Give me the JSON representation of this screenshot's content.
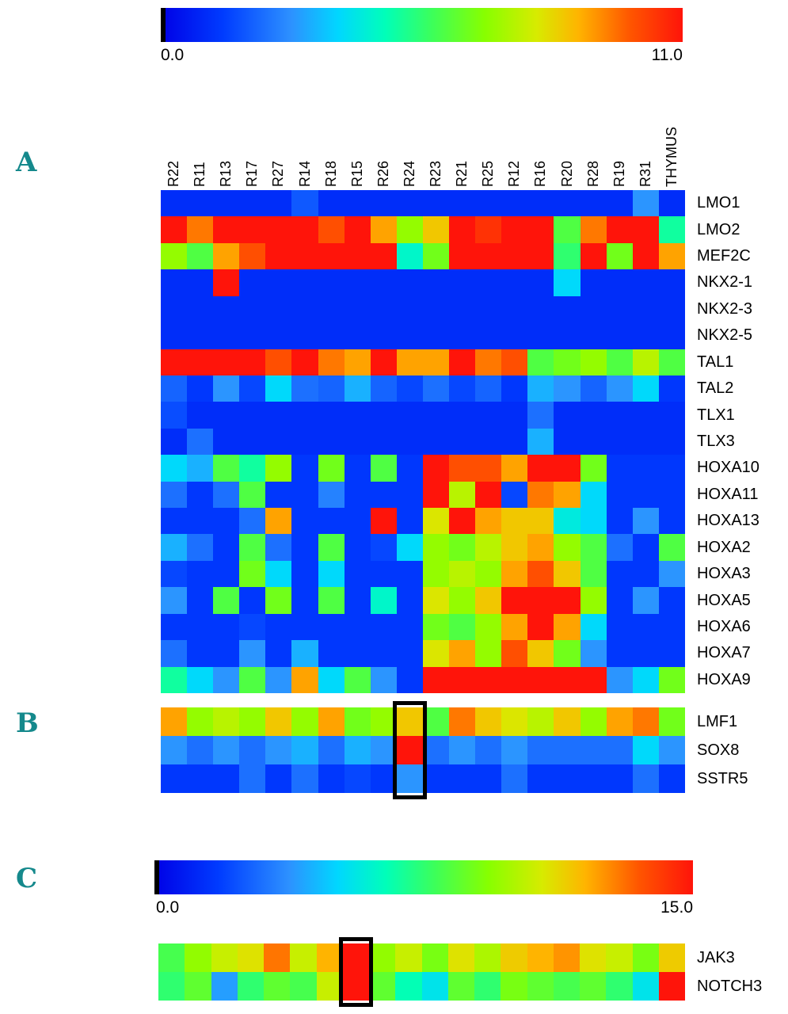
{
  "figure": {
    "panel_a_label": "A",
    "panel_b_label": "B",
    "panel_c_label": "C",
    "accent_color": "#15898c",
    "highlight_box_color": "#000000"
  },
  "columns": [
    "R22",
    "R11",
    "R13",
    "R17",
    "R27",
    "R14",
    "R18",
    "R15",
    "R26",
    "R24",
    "R23",
    "R21",
    "R25",
    "R12",
    "R16",
    "R20",
    "R28",
    "R19",
    "R31",
    "THYMUS"
  ],
  "chart_data": [
    {
      "type": "heatmap",
      "panel": "A",
      "colormap": "rainbow (blue=low, red=high)",
      "colorbar": {
        "min": 0.0,
        "max": 11.0,
        "min_label": "0.0",
        "max_label": "11.0"
      },
      "scale": {
        "min": 0,
        "max": 11
      },
      "columns": [
        "R22",
        "R11",
        "R13",
        "R17",
        "R27",
        "R14",
        "R18",
        "R15",
        "R26",
        "R24",
        "R23",
        "R21",
        "R25",
        "R12",
        "R16",
        "R20",
        "R28",
        "R19",
        "R31",
        "THYMUS"
      ],
      "rows": [
        "LMO1",
        "LMO2",
        "MEF2C",
        "NKX2-1",
        "NKX2-3",
        "NKX2-5",
        "TAL1",
        "TAL2",
        "TLX1",
        "TLX3",
        "HOXA10",
        "HOXA11",
        "HOXA13",
        "HOXA2",
        "HOXA3",
        "HOXA5",
        "HOXA6",
        "HOXA7",
        "HOXA9"
      ],
      "values": [
        [
          1,
          1,
          1,
          1,
          1,
          1.8,
          1,
          1,
          1,
          1,
          1,
          1,
          1,
          1,
          1,
          1,
          1,
          1,
          2.8,
          1
        ],
        [
          11,
          9.5,
          11,
          11,
          11,
          11,
          10,
          11,
          9,
          7,
          8.5,
          11,
          10.5,
          11,
          11,
          6,
          9.5,
          11,
          11,
          5
        ],
        [
          7,
          6,
          9,
          10,
          11,
          11,
          11,
          11,
          11,
          4.5,
          6.5,
          11,
          11,
          11,
          11,
          5.5,
          11,
          6.5,
          11,
          9
        ],
        [
          1,
          1,
          11,
          1,
          1,
          1,
          1,
          1,
          1,
          1,
          1,
          1,
          1,
          1,
          1,
          3.8,
          1,
          1,
          1,
          1
        ],
        [
          1,
          1,
          1,
          1,
          1,
          1,
          1,
          1,
          1,
          1,
          1,
          1,
          1,
          1,
          1,
          1,
          1,
          1,
          1,
          1
        ],
        [
          1,
          1,
          1,
          1,
          1,
          1,
          1,
          1,
          1,
          1,
          1,
          1,
          1,
          1,
          1,
          1,
          1,
          1,
          1,
          1
        ],
        [
          11,
          11,
          11,
          11,
          10,
          11,
          9.5,
          9,
          11,
          9,
          9,
          11,
          9.5,
          10,
          6,
          6.5,
          7,
          6,
          7.5,
          6
        ],
        [
          2,
          1.2,
          2.8,
          1.5,
          3.8,
          2.2,
          2,
          3.2,
          2,
          1.5,
          2.2,
          1.5,
          2,
          1.2,
          3.2,
          2.8,
          2,
          2.8,
          3.8,
          1.2
        ],
        [
          1.6,
          1,
          1,
          1,
          1,
          1,
          1,
          1,
          1,
          1,
          1,
          1,
          1,
          1,
          2.2,
          1,
          1,
          1,
          1,
          1
        ],
        [
          1,
          2.2,
          1,
          1,
          1,
          1,
          1,
          1,
          1,
          1,
          1,
          1,
          1,
          1,
          3.2,
          1,
          1,
          1,
          1,
          1
        ],
        [
          3.8,
          3.2,
          6,
          5,
          7,
          1.2,
          6.5,
          1.2,
          6,
          1.2,
          11,
          10,
          10,
          9,
          11,
          11,
          6.5,
          1.2,
          1.2,
          1.2
        ],
        [
          2.2,
          1.2,
          2.2,
          6,
          1.2,
          1.2,
          2.5,
          1.2,
          1.2,
          1.2,
          11,
          7.5,
          11,
          1.5,
          9.5,
          9,
          3.8,
          1.2,
          1.2,
          1.2
        ],
        [
          1.2,
          1.2,
          1.2,
          2.2,
          9,
          1.2,
          1.2,
          1.2,
          11,
          1.2,
          8,
          11,
          9,
          8.5,
          8.5,
          4.2,
          3.8,
          1.2,
          2.8,
          1.2
        ],
        [
          3.2,
          2.2,
          1.2,
          6,
          2.2,
          1.2,
          6,
          1.2,
          1.5,
          3.8,
          7,
          6.5,
          7.5,
          8.5,
          9,
          7,
          6,
          2.2,
          1.2,
          6
        ],
        [
          1.5,
          1.2,
          1.2,
          6.5,
          3.8,
          1.2,
          3.8,
          1.2,
          1.2,
          1.2,
          7,
          7.5,
          7,
          9,
          10,
          8.5,
          6,
          1.2,
          1.2,
          2.8
        ],
        [
          2.8,
          1.2,
          6,
          1.2,
          6.5,
          1.2,
          6,
          1.2,
          4.5,
          1.2,
          8,
          7,
          8.5,
          11,
          11,
          11,
          7,
          1.2,
          2.8,
          1.2
        ],
        [
          1.2,
          1.2,
          1.2,
          1.5,
          1.2,
          1.2,
          1.2,
          1.2,
          1.2,
          1.2,
          6.5,
          6,
          7,
          9,
          11,
          9,
          3.8,
          1.2,
          1.2,
          1.2
        ],
        [
          2.2,
          1.2,
          1.2,
          2.8,
          1.2,
          3.2,
          1.2,
          1.2,
          1.2,
          1.2,
          8,
          9,
          7,
          10,
          8.5,
          6.5,
          2.8,
          1.2,
          1.2,
          1.2
        ],
        [
          5,
          3.8,
          2.8,
          6,
          2.8,
          9,
          3.8,
          6,
          2.8,
          1.2,
          11,
          11,
          11,
          11,
          11,
          11,
          11,
          2.8,
          3.8,
          6.5
        ]
      ]
    },
    {
      "type": "heatmap",
      "panel": "B",
      "colormap": "rainbow (blue=low, red=high)",
      "scale": {
        "min": 0,
        "max": 11
      },
      "rows": [
        "LMF1",
        "SOX8",
        "SSTR5"
      ],
      "values": [
        [
          9,
          7,
          7.5,
          7,
          8.5,
          7,
          9,
          6.5,
          7,
          8.5,
          6,
          9.5,
          8.5,
          8,
          7.5,
          8.5,
          7,
          9,
          9.5,
          6.5
        ],
        [
          2.8,
          2.2,
          2.8,
          2.2,
          2.8,
          3.2,
          2.2,
          3.2,
          2.8,
          11,
          2.2,
          2.8,
          2.2,
          2.8,
          2.2,
          2.2,
          2.2,
          2.2,
          3.8,
          2.8
        ],
        [
          1.2,
          1.2,
          1.2,
          2.2,
          1.2,
          2.2,
          1.2,
          1.5,
          1.2,
          2.8,
          1.2,
          1.2,
          1.2,
          2.2,
          1.2,
          1.2,
          1.2,
          1.2,
          2.2,
          1.2
        ]
      ],
      "highlight_column": "R24",
      "highlight_column_index": 9
    },
    {
      "type": "heatmap",
      "panel": "C",
      "colormap": "rainbow (blue=low, red=high)",
      "colorbar": {
        "min": 0.0,
        "max": 15.0,
        "min_label": "0.0",
        "max_label": "15.0"
      },
      "scale": {
        "min": 0,
        "max": 15
      },
      "rows": [
        "JAK3",
        "NOTCH3"
      ],
      "values": [
        [
          8,
          9.5,
          10.5,
          11,
          13,
          10.5,
          12,
          15,
          9.5,
          10.5,
          9,
          11,
          10,
          11.5,
          12,
          12.5,
          11,
          10.5,
          9,
          11.5
        ],
        [
          7.5,
          8.5,
          4,
          7.5,
          8.5,
          8,
          10.5,
          15,
          8.5,
          6.5,
          5.5,
          8.5,
          7.5,
          9,
          8.5,
          8,
          8.5,
          7.5,
          5.5,
          15
        ]
      ],
      "highlight_column": "R15",
      "highlight_column_index": 7
    }
  ]
}
